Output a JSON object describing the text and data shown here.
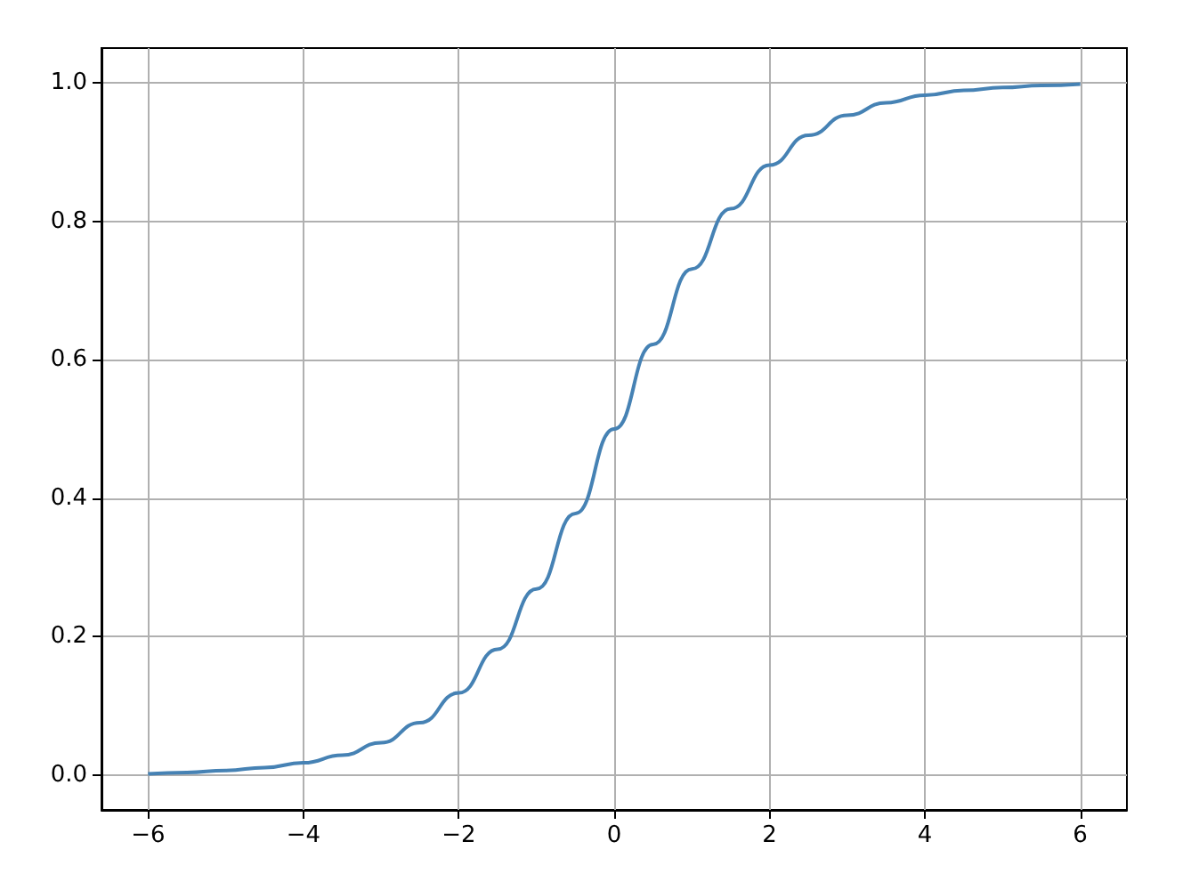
{
  "chart_data": {
    "type": "line",
    "x": [
      -6,
      -5.5,
      -5,
      -4.5,
      -4,
      -3.5,
      -3,
      -2.5,
      -2,
      -1.5,
      -1,
      -0.5,
      0,
      0.5,
      1,
      1.5,
      2,
      2.5,
      3,
      3.5,
      4,
      4.5,
      5,
      5.5,
      6
    ],
    "series": [
      {
        "color": "#4682b4",
        "values": [
          0.002,
          0.004,
          0.007,
          0.011,
          0.018,
          0.029,
          0.047,
          0.076,
          0.119,
          0.182,
          0.269,
          0.378,
          0.5,
          0.622,
          0.731,
          0.818,
          0.881,
          0.924,
          0.953,
          0.971,
          0.982,
          0.989,
          0.993,
          0.996,
          0.998
        ]
      }
    ],
    "xlim": [
      -6.6,
      6.6
    ],
    "xticks": [
      {
        "value": -6,
        "label": "−6"
      },
      {
        "value": -4,
        "label": "−4"
      },
      {
        "value": -2,
        "label": "−2"
      },
      0,
      2,
      4,
      6
    ],
    "ylim": [
      -0.05,
      1.05
    ],
    "yticks": [
      {
        "value": 0,
        "label": "0.0"
      },
      {
        "value": 0.2,
        "label": "0.2"
      },
      {
        "value": 0.4,
        "label": "0.4"
      },
      {
        "value": 0.6,
        "label": "0.6"
      },
      {
        "value": 0.8,
        "label": "0.8"
      },
      {
        "value": 1,
        "label": "1.0"
      }
    ],
    "grid": true
  }
}
